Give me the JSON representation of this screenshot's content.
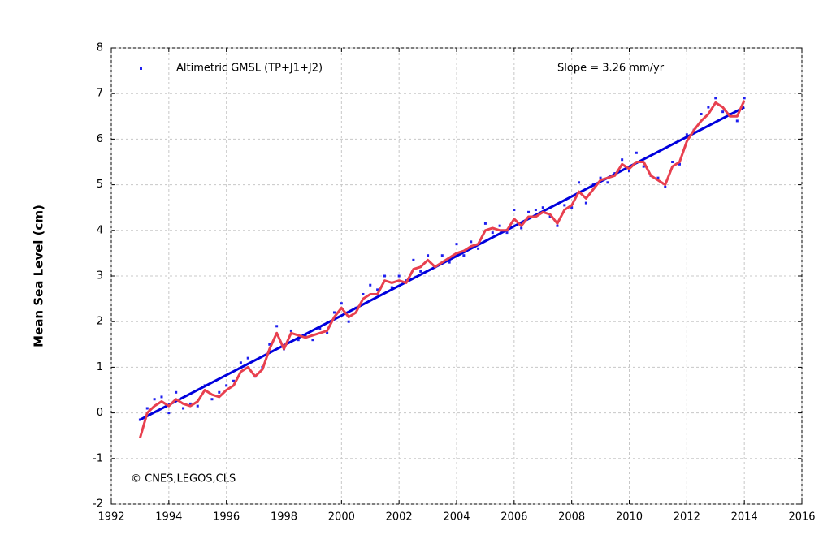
{
  "chart_data": {
    "type": "scatter",
    "y_label": "Mean Sea Level (cm)",
    "annotations": [
      "Slope = 3.26 mm/yr",
      "© CNES,LEGOS,CLS"
    ],
    "xlim": [
      1992,
      2016
    ],
    "xticks": [
      1992,
      1994,
      1996,
      1998,
      2000,
      2002,
      2004,
      2006,
      2008,
      2010,
      2012,
      2014,
      2016
    ],
    "ylim": [
      -2,
      8
    ],
    "yticks": [
      -2,
      -1,
      0,
      1,
      2,
      3,
      4,
      5,
      6,
      7,
      8
    ],
    "grid": true,
    "x": [
      1993,
      1993.25,
      1993.5,
      1993.75,
      1994,
      1994.25,
      1994.5,
      1994.75,
      1995,
      1995.25,
      1995.5,
      1995.75,
      1996,
      1996.25,
      1996.5,
      1996.75,
      1997,
      1997.25,
      1997.5,
      1997.75,
      1998,
      1998.25,
      1998.5,
      1998.75,
      1999,
      1999.25,
      1999.5,
      1999.75,
      2000,
      2000.25,
      2000.5,
      2000.75,
      2001,
      2001.25,
      2001.5,
      2001.75,
      2002,
      2002.25,
      2002.5,
      2002.75,
      2003,
      2003.25,
      2003.5,
      2003.75,
      2004,
      2004.25,
      2004.5,
      2004.75,
      2005,
      2005.25,
      2005.5,
      2005.75,
      2006,
      2006.25,
      2006.5,
      2006.75,
      2007,
      2007.25,
      2007.5,
      2007.75,
      2008,
      2008.25,
      2008.5,
      2008.75,
      2009,
      2009.25,
      2009.5,
      2009.75,
      2010,
      2010.25,
      2010.5,
      2010.75,
      2011,
      2011.25,
      2011.5,
      2011.75,
      2012,
      2012.25,
      2012.5,
      2012.75,
      2013,
      2013.25,
      2013.5,
      2013.75,
      2014
    ],
    "series": [
      {
        "name": "Altimetric GMSL (TP+J1+J2)",
        "color": "#1f1fef",
        "values": [
          -0.15,
          0.1,
          0.3,
          0.35,
          0.0,
          0.45,
          0.1,
          0.2,
          0.15,
          0.6,
          0.3,
          0.45,
          0.6,
          0.7,
          1.1,
          1.2,
          0.8,
          1.0,
          1.5,
          1.9,
          1.4,
          1.8,
          1.6,
          1.7,
          1.6,
          1.85,
          1.75,
          2.2,
          2.4,
          2.0,
          2.3,
          2.6,
          2.8,
          2.7,
          3.0,
          2.75,
          3.0,
          2.9,
          3.35,
          3.1,
          3.45,
          3.2,
          3.45,
          3.3,
          3.7,
          3.45,
          3.75,
          3.6,
          4.15,
          3.95,
          4.1,
          3.95,
          4.45,
          4.05,
          4.4,
          4.45,
          4.5,
          4.3,
          4.1,
          4.55,
          4.5,
          5.05,
          4.6,
          5.0,
          5.15,
          5.05,
          5.25,
          5.55,
          5.3,
          5.7,
          5.4,
          5.2,
          5.15,
          4.95,
          5.5,
          5.45,
          6.1,
          6.2,
          6.55,
          6.7,
          6.9,
          6.6,
          6.55,
          6.4,
          6.9
        ]
      },
      {
        "color": "#e8404f",
        "values": [
          -0.55,
          0.0,
          0.15,
          0.25,
          0.15,
          0.3,
          0.2,
          0.15,
          0.25,
          0.5,
          0.4,
          0.35,
          0.5,
          0.6,
          0.9,
          1.0,
          0.8,
          0.95,
          1.4,
          1.75,
          1.4,
          1.75,
          1.7,
          1.65,
          1.7,
          1.75,
          1.8,
          2.1,
          2.3,
          2.1,
          2.2,
          2.5,
          2.6,
          2.6,
          2.9,
          2.85,
          2.9,
          2.85,
          3.15,
          3.2,
          3.35,
          3.2,
          3.3,
          3.4,
          3.5,
          3.55,
          3.65,
          3.7,
          4.0,
          4.05,
          4.0,
          4.0,
          4.25,
          4.1,
          4.3,
          4.3,
          4.4,
          4.35,
          4.15,
          4.45,
          4.55,
          4.85,
          4.7,
          4.9,
          5.1,
          5.15,
          5.2,
          5.45,
          5.35,
          5.5,
          5.5,
          5.2,
          5.1,
          5.0,
          5.4,
          5.5,
          5.95,
          6.2,
          6.4,
          6.55,
          6.8,
          6.7,
          6.5,
          6.5,
          6.85
        ]
      }
    ],
    "trend": {
      "color": "#0000dd",
      "x": [
        1993,
        2014
      ],
      "values": [
        -0.15,
        6.7
      ]
    }
  }
}
